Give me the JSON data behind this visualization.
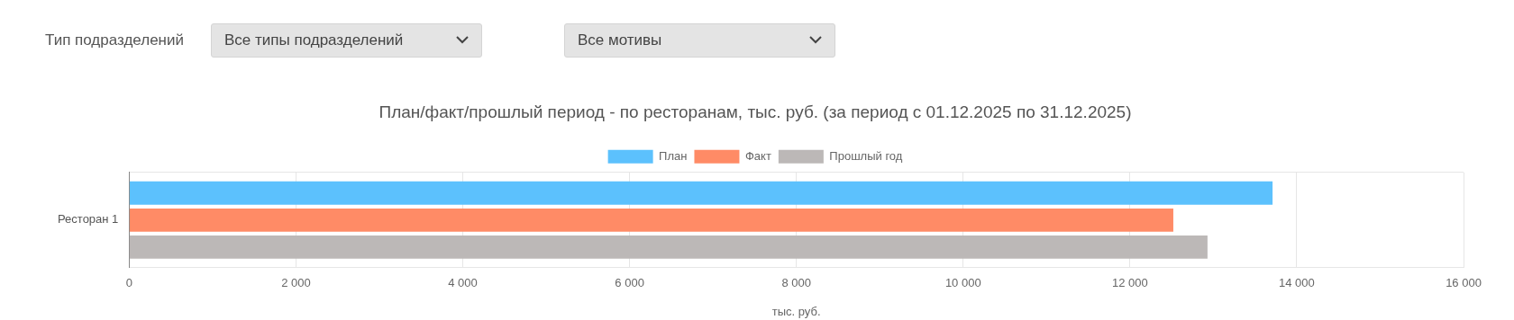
{
  "chart_data": [
    {
      "type": "other",
      "annotations": [
        "Тип подразделений",
        "Все типы подразделений",
        "Все мотивы"
      ]
    },
    {
      "type": "bar",
      "orientation": "horizontal",
      "title": "План/факт/прошлый период - по ресторанам, тыс. руб. (за период с 01.12.2025 по 31.12.2025)",
      "xlabel": "тыс. руб.",
      "categories": [
        "Ресторан 1"
      ],
      "series": [
        {
          "name": "План",
          "color": "#5cc1fd",
          "values": [
            13710
          ]
        },
        {
          "name": "Факт",
          "color": "#ff8b66",
          "values": [
            12520
          ]
        },
        {
          "name": "Прошлый год",
          "color": "#bcb8b7",
          "values": [
            12930
          ]
        }
      ],
      "xlim": [
        0,
        16000
      ],
      "xticks": [
        0,
        {
          "value": 2000,
          "label": "2 000"
        },
        {
          "value": 4000,
          "label": "4 000"
        },
        {
          "value": 6000,
          "label": "6 000"
        },
        {
          "value": 8000,
          "label": "8 000"
        },
        {
          "value": 10000,
          "label": "10 000"
        },
        {
          "value": 12000,
          "label": "12 000"
        },
        {
          "value": 14000,
          "label": "14 000"
        },
        {
          "value": 16000,
          "label": "16 000"
        }
      ],
      "grid": true,
      "legend": "top"
    }
  ]
}
